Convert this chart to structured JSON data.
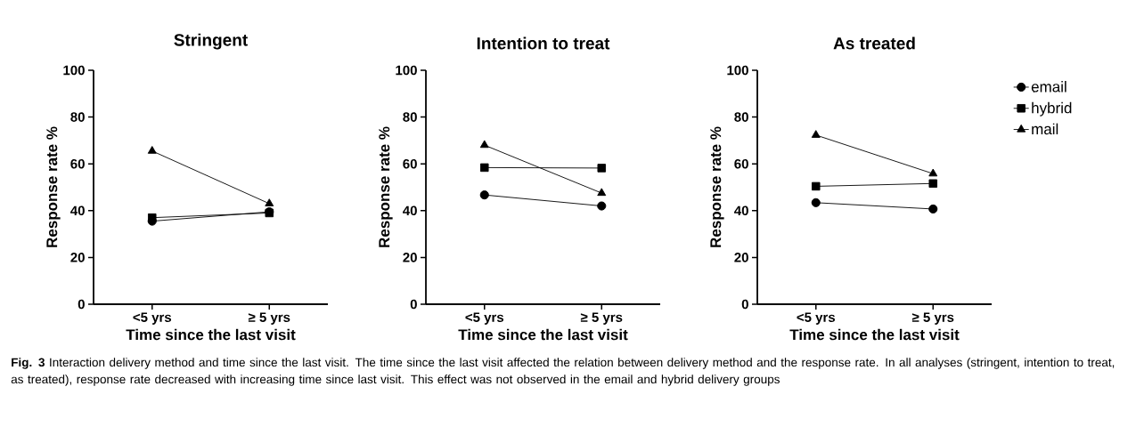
{
  "chart_data": [
    {
      "type": "line",
      "title": "Stringent",
      "xlabel": "Time since the last visit",
      "ylabel": "Response rate %",
      "categories": [
        "<5 yrs",
        "≥ 5 yrs"
      ],
      "ylim": [
        0,
        100
      ],
      "yticks": [
        0,
        20,
        40,
        60,
        80,
        100
      ],
      "legend": false,
      "series": [
        {
          "color": "#000000",
          "marker": "circle",
          "values": [
            35.5,
            39.5
          ]
        },
        {
          "color": "#000000",
          "marker": "square",
          "values": [
            37,
            39
          ]
        },
        {
          "color": "#000000",
          "marker": "triangle",
          "values": [
            65.5,
            43
          ]
        }
      ]
    },
    {
      "type": "line",
      "title": "Intention to treat",
      "xlabel": "Time since the last visit",
      "ylabel": "Response rate %",
      "categories": [
        "<5 yrs",
        "≥ 5 yrs"
      ],
      "ylim": [
        0,
        100
      ],
      "yticks": [
        0,
        20,
        40,
        60,
        80,
        100
      ],
      "legend": false,
      "series": [
        {
          "color": "#000000",
          "marker": "circle",
          "values": [
            46.7,
            42
          ]
        },
        {
          "color": "#000000",
          "marker": "square",
          "values": [
            58.4,
            58.2
          ]
        },
        {
          "color": "#000000",
          "marker": "triangle",
          "values": [
            68,
            47.5
          ]
        }
      ]
    },
    {
      "type": "line",
      "title": "As treated",
      "xlabel": "Time since the last visit",
      "ylabel": "Response rate %",
      "categories": [
        "<5 yrs",
        "≥ 5 yrs"
      ],
      "ylim": [
        0,
        100
      ],
      "yticks": [
        0,
        20,
        40,
        60,
        80,
        100
      ],
      "legend": "right",
      "series": [
        {
          "name": "email",
          "color": "#000000",
          "marker": "circle",
          "values": [
            43.4,
            40.7
          ]
        },
        {
          "name": "hybrid",
          "color": "#000000",
          "marker": "square",
          "values": [
            50.4,
            51.6
          ]
        },
        {
          "name": "mail",
          "color": "#000000",
          "marker": "triangle",
          "values": [
            72.3,
            55.8
          ]
        }
      ],
      "annotations": [
        "**Fig. 3** Interaction delivery method and time since the last visit. The time since the last visit affected the relation between delivery method and the response rate. In all analyses (stringent, intention to treat, as treated), response rate decreased with increasing time since last visit. This effect was not observed in the email and hybrid delivery groups"
      ]
    }
  ]
}
